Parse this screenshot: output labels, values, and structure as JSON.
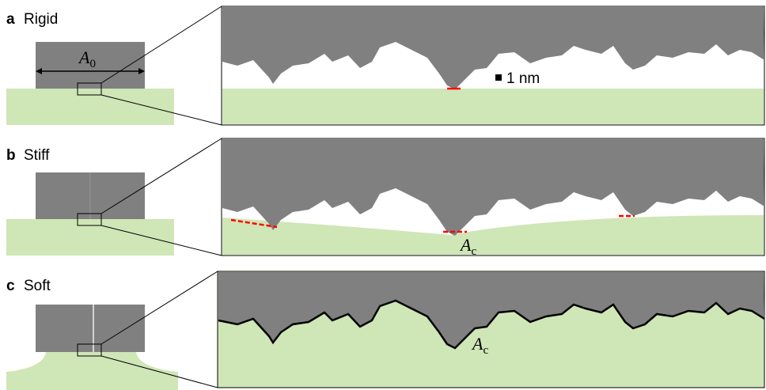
{
  "panels": [
    {
      "letter": "a",
      "label": "Rigid"
    },
    {
      "letter": "b",
      "label": "Stiff"
    },
    {
      "letter": "c",
      "label": "Soft"
    }
  ],
  "nominal_area": {
    "symbol": "A",
    "subscript": "0"
  },
  "scale_bar": "1 nm",
  "contact_area": {
    "symbol": "A",
    "subscript": "c"
  }
}
